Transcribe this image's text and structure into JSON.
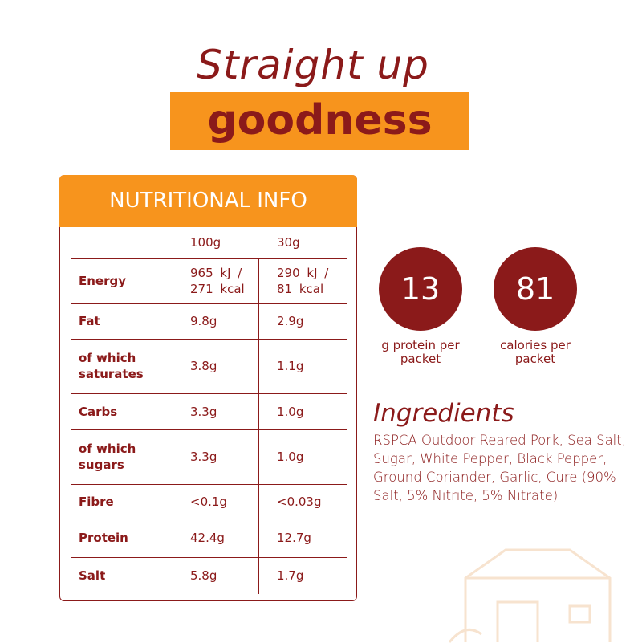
{
  "header": {
    "line1": "Straight up",
    "line2": "goodness"
  },
  "table": {
    "title": "NUTRITIONAL INFO",
    "columns": [
      "100g",
      "30g"
    ],
    "rows": [
      [
        "Energy",
        "965 kJ / 271 kcal",
        "290 kJ / 81 kcal"
      ],
      [
        "Fat",
        "9.8g",
        "2.9g"
      ],
      [
        "of which saturates",
        "3.8g",
        "1.1g"
      ],
      [
        "Carbs",
        "3.3g",
        "1.0g"
      ],
      [
        "of which sugars",
        "3.3g",
        "1.0g"
      ],
      [
        "Fibre",
        "<0.1g",
        "<0.03g"
      ],
      [
        "Protein",
        "42.4g",
        "12.7g"
      ],
      [
        "Salt",
        "5.8g",
        "1.7g"
      ]
    ]
  },
  "stats": [
    {
      "value": "13",
      "label": "g protein per packet"
    },
    {
      "value": "81",
      "label": "calories per packet"
    }
  ],
  "ingredients": {
    "title": "Ingredients",
    "text": "RSPCA Outdoor Reared Pork, Sea Salt, Sugar, White Pepper, Black Pepper, Ground Coriander, Garlic, Cure (90% Salt, 5% Nitrite, 5% Nitrate)"
  }
}
